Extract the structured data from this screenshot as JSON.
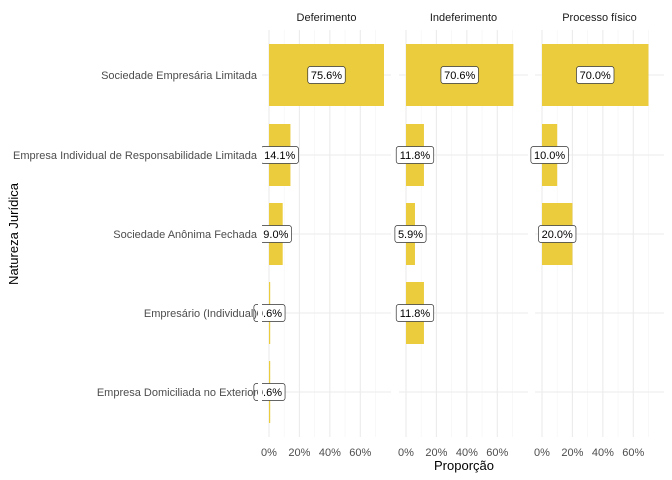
{
  "chart_data": {
    "type": "bar",
    "orientation": "horizontal",
    "facets": [
      "Deferimento",
      "Indeferimento",
      "Processo físico"
    ],
    "categories": [
      "Sociedade Empresária Limitada",
      "Empresa Individual de Responsabilidade Limitada",
      "Sociedade Anônima Fechada",
      "Empresário (Individual)",
      "Empresa Domiciliada no Exterior"
    ],
    "series": [
      {
        "facet": "Deferimento",
        "values": [
          75.6,
          14.1,
          9.0,
          0.6,
          0.6
        ],
        "labels": [
          "75.6%",
          "14.1%",
          "9.0%",
          "0.6%",
          "0.6%"
        ]
      },
      {
        "facet": "Indeferimento",
        "values": [
          70.6,
          11.8,
          5.9,
          11.8,
          null
        ],
        "labels": [
          "70.6%",
          "11.8%",
          "5.9%",
          "11.8%",
          null
        ]
      },
      {
        "facet": "Processo físico",
        "values": [
          70.0,
          10.0,
          20.0,
          null,
          null
        ],
        "labels": [
          "70.0%",
          "10.0%",
          "20.0%",
          null,
          null
        ]
      }
    ],
    "xlabel": "Proporção",
    "ylabel": "Natureza Jurídica",
    "xticks": [
      "0%",
      "20%",
      "40%",
      "60%"
    ],
    "xtick_values": [
      0,
      20,
      40,
      60
    ],
    "xlim": [
      0,
      75.6
    ],
    "grid": true,
    "legend": "none",
    "bar_color": "#EBCC3D"
  }
}
